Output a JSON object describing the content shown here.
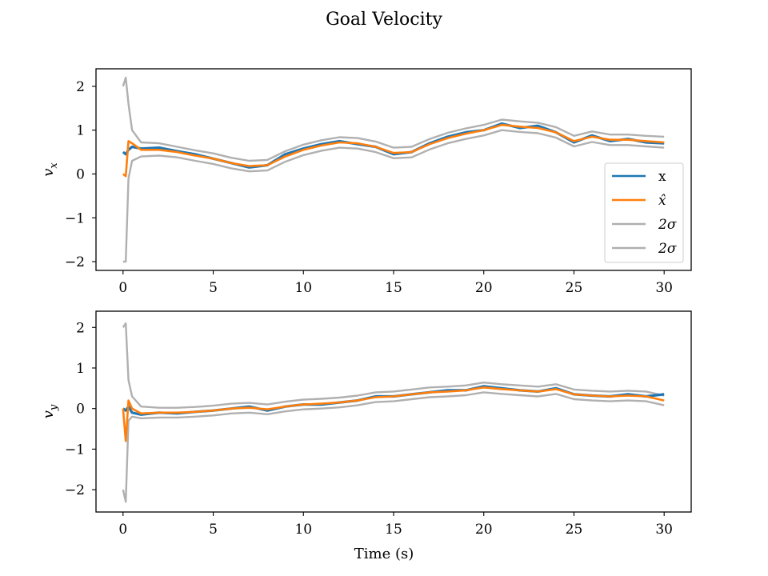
{
  "figure": {
    "title": "Goal Velocity",
    "xlabel": "Time (s)"
  },
  "colors": {
    "x": "#1f77b4",
    "xhat": "#ff7f0e",
    "sigma": "#b0b0b0"
  },
  "chart_data": [
    {
      "type": "line",
      "ylabel": "v_x",
      "xlim": [
        -1.5,
        31.5
      ],
      "ylim": [
        -2.2,
        2.4
      ],
      "xticks": [
        0,
        5,
        10,
        15,
        20,
        25,
        30
      ],
      "yticks": [
        -2,
        -1,
        0,
        1,
        2
      ],
      "legend": {
        "placement": "right",
        "entries": [
          "x",
          "x̂",
          "2σ",
          "2σ"
        ]
      },
      "x": [
        0,
        0.15,
        0.3,
        0.5,
        1,
        2,
        3,
        4,
        5,
        6,
        7,
        8,
        9,
        10,
        11,
        12,
        13,
        14,
        15,
        16,
        17,
        18,
        19,
        20,
        21,
        22,
        23,
        24,
        25,
        26,
        27,
        28,
        29,
        30
      ],
      "series": [
        {
          "name": "x",
          "values": [
            0.5,
            0.45,
            0.55,
            0.62,
            0.58,
            0.6,
            0.52,
            0.45,
            0.35,
            0.25,
            0.15,
            0.2,
            0.45,
            0.58,
            0.68,
            0.75,
            0.68,
            0.62,
            0.45,
            0.5,
            0.7,
            0.85,
            0.95,
            1.0,
            1.15,
            1.05,
            1.1,
            0.95,
            0.72,
            0.88,
            0.75,
            0.8,
            0.72,
            0.7
          ]
        },
        {
          "name": "x̂",
          "values": [
            0.0,
            -0.05,
            0.75,
            0.7,
            0.55,
            0.55,
            0.5,
            0.42,
            0.35,
            0.25,
            0.18,
            0.2,
            0.4,
            0.55,
            0.65,
            0.72,
            0.7,
            0.62,
            0.48,
            0.5,
            0.68,
            0.82,
            0.92,
            1.0,
            1.12,
            1.08,
            1.05,
            0.95,
            0.75,
            0.85,
            0.78,
            0.78,
            0.75,
            0.72
          ]
        },
        {
          "name": "2σ",
          "values": [
            2.0,
            2.2,
            1.6,
            1.0,
            0.72,
            0.7,
            0.62,
            0.54,
            0.47,
            0.37,
            0.3,
            0.32,
            0.52,
            0.67,
            0.77,
            0.84,
            0.82,
            0.74,
            0.6,
            0.62,
            0.8,
            0.94,
            1.04,
            1.12,
            1.24,
            1.2,
            1.17,
            1.07,
            0.87,
            0.97,
            0.9,
            0.9,
            0.87,
            0.85
          ]
        },
        {
          "name": "2σ",
          "values": [
            -2.0,
            -2.0,
            -0.1,
            0.3,
            0.4,
            0.42,
            0.38,
            0.3,
            0.23,
            0.13,
            0.06,
            0.08,
            0.28,
            0.43,
            0.53,
            0.6,
            0.58,
            0.5,
            0.36,
            0.38,
            0.56,
            0.7,
            0.8,
            0.88,
            1.0,
            0.96,
            0.93,
            0.83,
            0.63,
            0.73,
            0.66,
            0.66,
            0.63,
            0.6
          ]
        }
      ]
    },
    {
      "type": "line",
      "ylabel": "v_y",
      "xlim": [
        -1.5,
        31.5
      ],
      "ylim": [
        -2.55,
        2.4
      ],
      "xticks": [
        0,
        5,
        10,
        15,
        20,
        25,
        30
      ],
      "yticks": [
        -2,
        -1,
        0,
        1,
        2
      ],
      "x": [
        0,
        0.15,
        0.3,
        0.5,
        1,
        2,
        3,
        4,
        5,
        6,
        7,
        8,
        9,
        10,
        11,
        12,
        13,
        14,
        15,
        16,
        17,
        18,
        19,
        20,
        21,
        22,
        23,
        24,
        25,
        26,
        27,
        28,
        29,
        30
      ],
      "series": [
        {
          "name": "x",
          "values": [
            0.0,
            -0.05,
            0.05,
            -0.1,
            -0.15,
            -0.1,
            -0.12,
            -0.08,
            -0.05,
            0.0,
            0.05,
            -0.05,
            0.05,
            0.1,
            0.1,
            0.15,
            0.2,
            0.3,
            0.3,
            0.35,
            0.4,
            0.45,
            0.45,
            0.55,
            0.5,
            0.45,
            0.42,
            0.5,
            0.35,
            0.32,
            0.3,
            0.35,
            0.3,
            0.35
          ]
        },
        {
          "name": "x̂",
          "values": [
            0.0,
            -0.8,
            0.2,
            0.0,
            -0.12,
            -0.1,
            -0.1,
            -0.08,
            -0.05,
            0.0,
            0.02,
            -0.02,
            0.05,
            0.1,
            0.12,
            0.15,
            0.2,
            0.28,
            0.3,
            0.35,
            0.4,
            0.42,
            0.45,
            0.52,
            0.48,
            0.45,
            0.42,
            0.48,
            0.35,
            0.32,
            0.3,
            0.32,
            0.3,
            0.2
          ]
        },
        {
          "name": "2σ",
          "values": [
            2.0,
            2.1,
            0.7,
            0.3,
            0.05,
            0.02,
            0.02,
            0.04,
            0.07,
            0.12,
            0.14,
            0.1,
            0.17,
            0.22,
            0.24,
            0.27,
            0.32,
            0.4,
            0.42,
            0.47,
            0.52,
            0.54,
            0.57,
            0.64,
            0.6,
            0.57,
            0.54,
            0.6,
            0.47,
            0.44,
            0.42,
            0.44,
            0.42,
            0.32
          ]
        },
        {
          "name": "2σ",
          "values": [
            -2.0,
            -2.3,
            -0.3,
            -0.2,
            -0.24,
            -0.22,
            -0.22,
            -0.2,
            -0.17,
            -0.12,
            -0.1,
            -0.14,
            -0.07,
            -0.02,
            0.0,
            0.03,
            0.08,
            0.16,
            0.18,
            0.23,
            0.28,
            0.3,
            0.33,
            0.4,
            0.36,
            0.33,
            0.3,
            0.36,
            0.23,
            0.2,
            0.18,
            0.2,
            0.18,
            0.08
          ]
        }
      ]
    }
  ]
}
